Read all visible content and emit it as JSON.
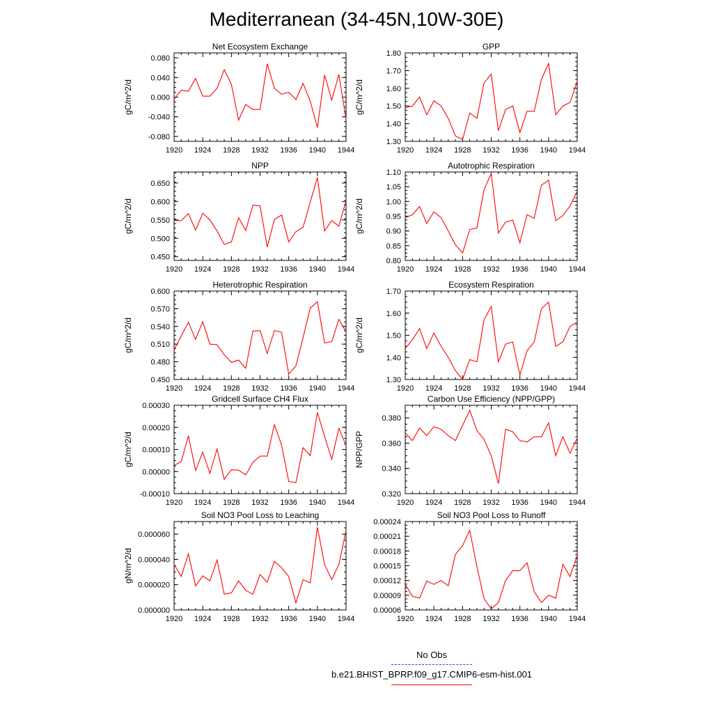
{
  "title": "Mediterranean (34-45N,10W-30E)",
  "legend": {
    "items": [
      {
        "label": "No Obs",
        "color": "#3b3bd9",
        "style": "dashed"
      },
      {
        "label": "b.e21.BHIST_BPRP.f09_g17.CMIP6-esm-hist.001",
        "color": "#ff0000",
        "style": "solid"
      }
    ]
  },
  "chart_data": [
    {
      "type": "line",
      "title": "Net Ecosystem Exchange",
      "ylabel": "gC/m^2/d",
      "xlim": [
        1920,
        1944
      ],
      "ylim": [
        -0.09,
        0.09
      ],
      "xticks": [
        "1920",
        "1924",
        "1928",
        "1932",
        "1936",
        "1940",
        "1944"
      ],
      "yticks": [
        "-0.080",
        "-0.040",
        "0.000",
        "0.040",
        "0.080"
      ],
      "series": [
        {
          "x": [
            1920,
            1921,
            1922,
            1923,
            1924,
            1925,
            1926,
            1927,
            1928,
            1929,
            1930,
            1931,
            1932,
            1933,
            1934,
            1935,
            1936,
            1937,
            1938,
            1939,
            1940,
            1941,
            1942,
            1943,
            1944
          ],
          "y": [
            -0.004,
            0.014,
            0.012,
            0.038,
            0.002,
            0.002,
            0.018,
            0.056,
            0.026,
            -0.047,
            -0.015,
            -0.025,
            -0.025,
            0.068,
            0.018,
            0.006,
            0.01,
            -0.005,
            0.028,
            -0.008,
            -0.062,
            0.045,
            -0.006,
            0.046,
            -0.045
          ],
          "color": "#ff0000"
        }
      ]
    },
    {
      "type": "line",
      "title": "GPP",
      "ylabel": "gC/m^2/d",
      "xlim": [
        1920,
        1944
      ],
      "ylim": [
        1.3,
        1.8
      ],
      "xticks": [
        "1920",
        "1924",
        "1928",
        "1932",
        "1936",
        "1940",
        "1944"
      ],
      "yticks": [
        "1.30",
        "1.40",
        "1.50",
        "1.60",
        "1.70",
        "1.80"
      ],
      "series": [
        {
          "x": [
            1920,
            1921,
            1922,
            1923,
            1924,
            1925,
            1926,
            1927,
            1928,
            1929,
            1930,
            1931,
            1932,
            1933,
            1934,
            1935,
            1936,
            1937,
            1938,
            1939,
            1940,
            1941,
            1942,
            1943,
            1944
          ],
          "y": [
            1.49,
            1.5,
            1.55,
            1.45,
            1.53,
            1.5,
            1.43,
            1.33,
            1.31,
            1.46,
            1.43,
            1.63,
            1.68,
            1.36,
            1.48,
            1.5,
            1.35,
            1.47,
            1.47,
            1.65,
            1.74,
            1.45,
            1.5,
            1.52,
            1.64
          ],
          "color": "#ff0000"
        }
      ]
    },
    {
      "type": "line",
      "title": "NPP",
      "ylabel": "gC/m^2/d",
      "xlim": [
        1920,
        1944
      ],
      "ylim": [
        0.44,
        0.68
      ],
      "xticks": [
        "1920",
        "1924",
        "1928",
        "1932",
        "1936",
        "1940",
        "1944"
      ],
      "yticks": [
        "0.450",
        "0.500",
        "0.550",
        "0.600",
        "0.650"
      ],
      "series": [
        {
          "x": [
            1920,
            1921,
            1922,
            1923,
            1924,
            1925,
            1926,
            1927,
            1928,
            1929,
            1930,
            1931,
            1932,
            1933,
            1934,
            1935,
            1936,
            1937,
            1938,
            1939,
            1940,
            1941,
            1942,
            1943,
            1944
          ],
          "y": [
            0.548,
            0.548,
            0.567,
            0.522,
            0.568,
            0.55,
            0.52,
            0.483,
            0.49,
            0.556,
            0.521,
            0.59,
            0.588,
            0.476,
            0.551,
            0.563,
            0.49,
            0.518,
            0.53,
            0.598,
            0.665,
            0.52,
            0.548,
            0.533,
            0.602
          ],
          "color": "#ff0000"
        }
      ]
    },
    {
      "type": "line",
      "title": "Autotrophic Respiration",
      "ylabel": "gC/m^2/d",
      "xlim": [
        1920,
        1944
      ],
      "ylim": [
        0.8,
        1.1
      ],
      "xticks": [
        "1920",
        "1924",
        "1928",
        "1932",
        "1936",
        "1940",
        "1944"
      ],
      "yticks": [
        "0.80",
        "0.85",
        "0.90",
        "0.95",
        "1.00",
        "1.05",
        "1.10"
      ],
      "series": [
        {
          "x": [
            1920,
            1921,
            1922,
            1923,
            1924,
            1925,
            1926,
            1927,
            1928,
            1929,
            1930,
            1931,
            1932,
            1933,
            1934,
            1935,
            1936,
            1937,
            1938,
            1939,
            1940,
            1941,
            1942,
            1943,
            1944
          ],
          "y": [
            0.945,
            0.955,
            0.983,
            0.925,
            0.965,
            0.945,
            0.9,
            0.853,
            0.825,
            0.905,
            0.91,
            1.04,
            1.095,
            0.893,
            0.93,
            0.937,
            0.86,
            0.955,
            0.943,
            1.055,
            1.072,
            0.935,
            0.952,
            0.985,
            1.035
          ],
          "color": "#ff0000"
        }
      ]
    },
    {
      "type": "line",
      "title": "Heterotrophic Respiration",
      "ylabel": "gC/m^2/d",
      "xlim": [
        1920,
        1944
      ],
      "ylim": [
        0.45,
        0.6
      ],
      "xticks": [
        "1920",
        "1924",
        "1928",
        "1932",
        "1936",
        "1940",
        "1944"
      ],
      "yticks": [
        "0.450",
        "0.480",
        "0.510",
        "0.540",
        "0.570",
        "0.600"
      ],
      "series": [
        {
          "x": [
            1920,
            1921,
            1922,
            1923,
            1924,
            1925,
            1926,
            1927,
            1928,
            1929,
            1930,
            1931,
            1932,
            1933,
            1934,
            1935,
            1936,
            1937,
            1938,
            1939,
            1940,
            1941,
            1942,
            1943,
            1944
          ],
          "y": [
            0.5,
            0.524,
            0.547,
            0.518,
            0.548,
            0.51,
            0.509,
            0.492,
            0.479,
            0.483,
            0.469,
            0.532,
            0.533,
            0.494,
            0.533,
            0.53,
            0.459,
            0.473,
            0.521,
            0.571,
            0.582,
            0.512,
            0.514,
            0.552,
            0.531
          ],
          "color": "#ff0000"
        }
      ]
    },
    {
      "type": "line",
      "title": "Ecosystem Respiration",
      "ylabel": "gC/m^2/d",
      "xlim": [
        1920,
        1944
      ],
      "ylim": [
        1.3,
        1.7
      ],
      "xticks": [
        "1920",
        "1924",
        "1928",
        "1932",
        "1936",
        "1940",
        "1944"
      ],
      "yticks": [
        "1.30",
        "1.40",
        "1.50",
        "1.60",
        "1.70"
      ],
      "series": [
        {
          "x": [
            1920,
            1921,
            1922,
            1923,
            1924,
            1925,
            1926,
            1927,
            1928,
            1929,
            1930,
            1931,
            1932,
            1933,
            1934,
            1935,
            1936,
            1937,
            1938,
            1939,
            1940,
            1941,
            1942,
            1943,
            1944
          ],
          "y": [
            1.44,
            1.48,
            1.53,
            1.44,
            1.51,
            1.45,
            1.4,
            1.34,
            1.3,
            1.39,
            1.38,
            1.57,
            1.63,
            1.38,
            1.46,
            1.47,
            1.32,
            1.43,
            1.47,
            1.62,
            1.65,
            1.45,
            1.47,
            1.54,
            1.56
          ],
          "color": "#ff0000"
        }
      ]
    },
    {
      "type": "line",
      "title": "Gridcell Surface CH4 Flux",
      "ylabel": "gC/m^2/d",
      "xlim": [
        1920,
        1944
      ],
      "ylim": [
        -0.0001,
        0.0003
      ],
      "xticks": [
        "1920",
        "1924",
        "1928",
        "1932",
        "1936",
        "1940",
        "1944"
      ],
      "yticks": [
        "-0.00010",
        "0.00000",
        "0.00010",
        "0.00020",
        "0.00030"
      ],
      "series": [
        {
          "x": [
            1920,
            1921,
            1922,
            1923,
            1924,
            1925,
            1926,
            1927,
            1928,
            1929,
            1930,
            1931,
            1932,
            1933,
            1934,
            1935,
            1936,
            1937,
            1938,
            1939,
            1940,
            1941,
            1942,
            1943,
            1944
          ],
          "y": [
            2.8e-05,
            4.5e-05,
            0.000162,
            5e-06,
            8.8e-05,
            -8e-06,
            0.000102,
            -3.5e-05,
            8e-06,
            6e-06,
            -1.5e-05,
            4.2e-05,
            7e-05,
            7e-05,
            0.000212,
            0.00012,
            -4.5e-05,
            -5e-05,
            0.000108,
            7.2e-05,
            0.000268,
            0.00016,
            5.5e-05,
            0.000196,
            0.000118
          ],
          "color": "#ff0000"
        }
      ]
    },
    {
      "type": "line",
      "title": "Carbon Use Efficiency (NPP/GPP)",
      "ylabel": "NPP/GPP",
      "xlim": [
        1920,
        1944
      ],
      "ylim": [
        0.32,
        0.39
      ],
      "xticks": [
        "1920",
        "1924",
        "1928",
        "1932",
        "1936",
        "1940",
        "1944"
      ],
      "yticks": [
        "0.320",
        "0.340",
        "0.360",
        "0.380"
      ],
      "series": [
        {
          "x": [
            1920,
            1921,
            1922,
            1923,
            1924,
            1925,
            1926,
            1927,
            1928,
            1929,
            1930,
            1931,
            1932,
            1933,
            1934,
            1935,
            1936,
            1937,
            1938,
            1939,
            1940,
            1941,
            1942,
            1943,
            1944
          ],
          "y": [
            0.368,
            0.362,
            0.372,
            0.366,
            0.373,
            0.371,
            0.366,
            0.362,
            0.374,
            0.386,
            0.37,
            0.363,
            0.35,
            0.328,
            0.371,
            0.369,
            0.362,
            0.361,
            0.365,
            0.365,
            0.376,
            0.35,
            0.365,
            0.352,
            0.364
          ],
          "color": "#ff0000"
        }
      ]
    },
    {
      "type": "line",
      "title": "Soil NO3 Pool Loss to Leaching",
      "ylabel": "gN/m^2/d",
      "xlim": [
        1920,
        1944
      ],
      "ylim": [
        0,
        7e-05
      ],
      "xticks": [
        "1920",
        "1924",
        "1928",
        "1932",
        "1936",
        "1940",
        "1944"
      ],
      "yticks": [
        "0.000000",
        "0.000020",
        "0.000040",
        "0.000060"
      ],
      "series": [
        {
          "x": [
            1920,
            1921,
            1922,
            1923,
            1924,
            1925,
            1926,
            1927,
            1928,
            1929,
            1930,
            1931,
            1932,
            1933,
            1934,
            1935,
            1936,
            1937,
            1938,
            1939,
            1940,
            1941,
            1942,
            1943,
            1944
          ],
          "y": [
            3.6e-05,
            2.65e-05,
            4.45e-05,
            1.9e-05,
            2.7e-05,
            2.3e-05,
            3.95e-05,
            1.25e-05,
            1.35e-05,
            2.3e-05,
            1.55e-05,
            1.25e-05,
            2.8e-05,
            2.2e-05,
            3.85e-05,
            3.35e-05,
            2.65e-05,
            5.5e-06,
            2.4e-05,
            2.15e-05,
            6.55e-05,
            3.6e-05,
            2.4e-05,
            3.6e-05,
            6.3e-05
          ],
          "color": "#ff0000"
        }
      ]
    },
    {
      "type": "line",
      "title": "Soil NO3 Pool Loss to Runoff",
      "ylabel": "",
      "xlim": [
        1920,
        1944
      ],
      "ylim": [
        6e-05,
        0.00024
      ],
      "xticks": [
        "1920",
        "1924",
        "1928",
        "1932",
        "1936",
        "1940",
        "1944"
      ],
      "yticks": [
        "0.00006",
        "0.00009",
        "0.00012",
        "0.00015",
        "0.00018",
        "0.00021",
        "0.00024"
      ],
      "series": [
        {
          "x": [
            1920,
            1921,
            1922,
            1923,
            1924,
            1925,
            1926,
            1927,
            1928,
            1929,
            1930,
            1931,
            1932,
            1933,
            1934,
            1935,
            1936,
            1937,
            1938,
            1939,
            1940,
            1941,
            1942,
            1943,
            1944
          ],
          "y": [
            0.000112,
            8.8e-05,
            8.4e-05,
            0.000119,
            0.000112,
            0.00012,
            0.000109,
            0.000173,
            0.000191,
            0.000222,
            0.000148,
            8.3e-05,
            6.2e-05,
            7.5e-05,
            0.00012,
            0.00014,
            0.00014,
            0.000156,
            9.7e-05,
            7.5e-05,
            9e-05,
            8.4e-05,
            0.000153,
            0.000128,
            0.000171
          ],
          "color": "#ff0000"
        }
      ]
    }
  ]
}
